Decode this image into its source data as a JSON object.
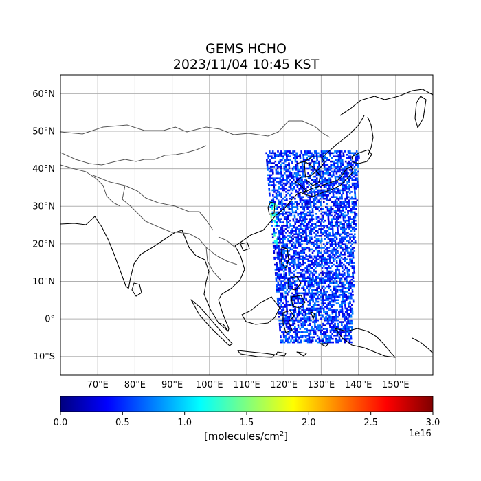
{
  "title": {
    "line1": "GEMS HCHO",
    "line2": "2023/11/04 10:45 KST"
  },
  "map": {
    "lon_ticks": [
      "70°E",
      "80°E",
      "90°E",
      "100°E",
      "110°E",
      "120°E",
      "130°E",
      "140°E",
      "150°E"
    ],
    "lat_ticks": [
      "60°N",
      "50°N",
      "40°N",
      "30°N",
      "20°N",
      "10°N",
      "0°",
      "10°S"
    ],
    "lon_range": [
      60,
      160
    ],
    "lat_range": [
      -15,
      65
    ],
    "grid": true,
    "colors": {
      "coastline": "#000000",
      "border": "#555555",
      "gridline": "#b0b0b0"
    }
  },
  "colorbar": {
    "colormap": "jet",
    "ticks": [
      "0.0",
      "0.5",
      "1.0",
      "1.5",
      "2.0",
      "2.5",
      "3.0"
    ],
    "range": [
      0.0,
      3.0
    ],
    "multiplier": "1e16",
    "label_prefix": "[molecules/cm",
    "label_sup": "2",
    "label_suffix": "]"
  },
  "chart_data": {
    "type": "heatmap",
    "title": "GEMS HCHO 2023/11/04 10:45 KST",
    "quantity": "HCHO column",
    "units": "molecules/cm2",
    "value_scale": "1e16",
    "lon_range": [
      60,
      160
    ],
    "lat_range": [
      -15,
      65
    ],
    "swath": {
      "lat_north": 45,
      "lat_south": -6,
      "lon_west_north": 115,
      "lon_east_north": 140,
      "lon_west_south": 119,
      "lon_east_south": 138
    },
    "typical_value_range": [
      0.2,
      0.8
    ],
    "elevated_region": "South China coast near 20-30°N, 113-118°E, values ~1.0-1.5"
  }
}
